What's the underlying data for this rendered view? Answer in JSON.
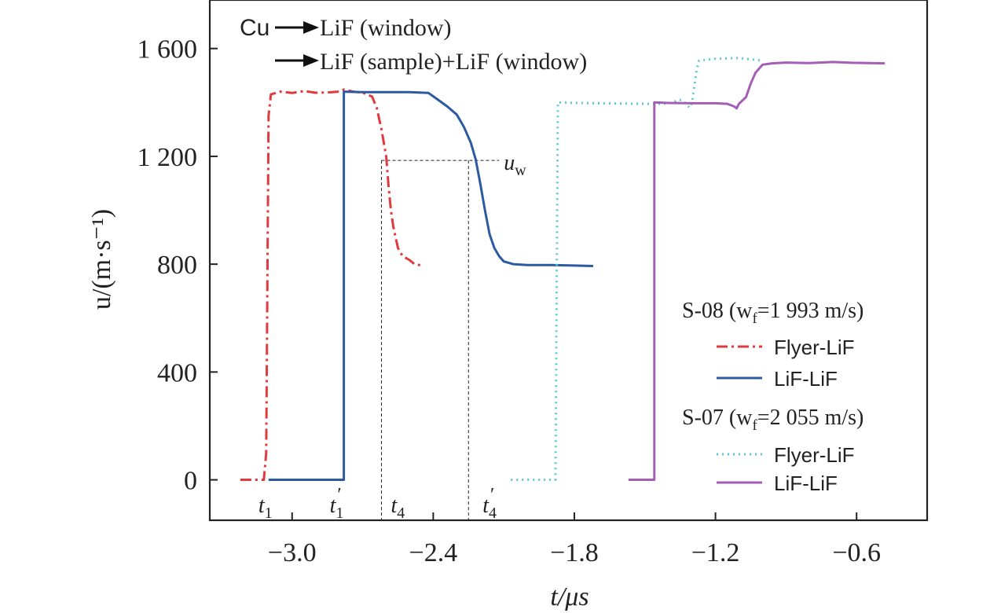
{
  "chart_data": {
    "type": "line",
    "xlabel": "t/μs",
    "ylabel": "u/(m·s⁻¹)",
    "xlim": [
      -3.35,
      -0.3
    ],
    "ylim": [
      -150,
      1780
    ],
    "xticks": [
      -3.0,
      -2.4,
      -1.8,
      -1.2,
      -0.6
    ],
    "xtick_labels": [
      "−3.0",
      "−2.4",
      "−1.8",
      "−1.2",
      "−0.6"
    ],
    "yticks": [
      0,
      400,
      800,
      1200,
      1600
    ],
    "ytick_labels": [
      "0",
      "400",
      "800",
      "1 200",
      "1 600"
    ],
    "grid": false,
    "annotations": {
      "schema_line1_a": "Cu",
      "schema_line1_b": "LiF (window)",
      "schema_line2": "LiF (sample)+LiF (window)",
      "u_w": "u",
      "u_w_sub": "w",
      "t1": "t",
      "t1_sub": "1",
      "t1p": "t",
      "t1p_sub": "1",
      "t4": "t",
      "t4_sub": "4",
      "t4p": "t",
      "t4p_sub": "4"
    },
    "legend": {
      "placement": "right",
      "groups": [
        {
          "label": "S-08 (w",
          "label_sub": "f",
          "label_tail": "=1 993 m/s)",
          "entries": [
            "Flyer-LiF",
            "LiF-LiF"
          ]
        },
        {
          "label": "S-07 (w",
          "label_sub": "f",
          "label_tail": "=2 055 m/s)",
          "entries": [
            "Flyer-LiF",
            "LiF-LiF"
          ]
        }
      ]
    },
    "colors": {
      "s08_flyer": "#e0393e",
      "s08_lif": "#2c5aa0",
      "s07_flyer": "#5bc8d8",
      "s07_lif": "#a45fb5"
    },
    "series": [
      {
        "name": "S-08 Flyer-LiF",
        "style": "dashdot",
        "color": "#e0393e",
        "points": [
          [
            -3.22,
            0
          ],
          [
            -3.12,
            0
          ],
          [
            -3.11,
            100
          ],
          [
            -3.1,
            1350
          ],
          [
            -3.09,
            1430
          ],
          [
            -3.05,
            1440
          ],
          [
            -3.0,
            1435
          ],
          [
            -2.95,
            1442
          ],
          [
            -2.9,
            1436
          ],
          [
            -2.85,
            1437
          ],
          [
            -2.8,
            1440
          ],
          [
            -2.78,
            1448
          ],
          [
            -2.74,
            1440
          ],
          [
            -2.7,
            1436
          ],
          [
            -2.66,
            1422
          ],
          [
            -2.64,
            1380
          ],
          [
            -2.62,
            1300
          ],
          [
            -2.6,
            1200
          ],
          [
            -2.59,
            1090
          ],
          [
            -2.58,
            1000
          ],
          [
            -2.57,
            940
          ],
          [
            -2.56,
            900
          ],
          [
            -2.55,
            860
          ],
          [
            -2.53,
            830
          ],
          [
            -2.5,
            815
          ],
          [
            -2.48,
            800
          ],
          [
            -2.46,
            797
          ],
          [
            -2.45,
            795
          ]
        ]
      },
      {
        "name": "S-08 LiF-LiF",
        "style": "solid",
        "color": "#2c5aa0",
        "points": [
          [
            -3.1,
            0
          ],
          [
            -2.78,
            0
          ],
          [
            -2.78,
            1440
          ],
          [
            -2.7,
            1438
          ],
          [
            -2.6,
            1438
          ],
          [
            -2.5,
            1438
          ],
          [
            -2.42,
            1435
          ],
          [
            -2.38,
            1410
          ],
          [
            -2.34,
            1385
          ],
          [
            -2.3,
            1355
          ],
          [
            -2.27,
            1310
          ],
          [
            -2.24,
            1250
          ],
          [
            -2.22,
            1190
          ],
          [
            -2.2,
            1100
          ],
          [
            -2.18,
            1000
          ],
          [
            -2.16,
            910
          ],
          [
            -2.14,
            860
          ],
          [
            -2.12,
            830
          ],
          [
            -2.1,
            810
          ],
          [
            -2.06,
            800
          ],
          [
            -2.0,
            797
          ],
          [
            -1.9,
            797
          ],
          [
            -1.8,
            795
          ],
          [
            -1.72,
            793
          ]
        ]
      },
      {
        "name": "S-07 Flyer-LiF",
        "style": "dotted",
        "color": "#5bc8d8",
        "points": [
          [
            -2.07,
            0
          ],
          [
            -1.88,
            0
          ],
          [
            -1.88,
            10
          ],
          [
            -1.87,
            1400
          ],
          [
            -1.8,
            1398
          ],
          [
            -1.7,
            1397
          ],
          [
            -1.6,
            1396
          ],
          [
            -1.5,
            1395
          ],
          [
            -1.42,
            1395
          ],
          [
            -1.38,
            1400
          ],
          [
            -1.36,
            1410
          ],
          [
            -1.34,
            1408
          ],
          [
            -1.32,
            1390
          ],
          [
            -1.31,
            1380
          ],
          [
            -1.3,
            1400
          ],
          [
            -1.28,
            1520
          ],
          [
            -1.27,
            1555
          ],
          [
            -1.2,
            1562
          ],
          [
            -1.1,
            1565
          ],
          [
            -1.05,
            1560
          ],
          [
            -1.0,
            1555
          ]
        ]
      },
      {
        "name": "S-07 LiF-LiF",
        "style": "solid",
        "color": "#a45fb5",
        "points": [
          [
            -1.57,
            0
          ],
          [
            -1.46,
            0
          ],
          [
            -1.46,
            1400
          ],
          [
            -1.4,
            1398
          ],
          [
            -1.3,
            1397
          ],
          [
            -1.2,
            1397
          ],
          [
            -1.15,
            1395
          ],
          [
            -1.12,
            1385
          ],
          [
            -1.11,
            1378
          ],
          [
            -1.1,
            1395
          ],
          [
            -1.07,
            1420
          ],
          [
            -1.05,
            1470
          ],
          [
            -1.03,
            1510
          ],
          [
            -1.0,
            1540
          ],
          [
            -0.96,
            1545
          ],
          [
            -0.9,
            1548
          ],
          [
            -0.8,
            1546
          ],
          [
            -0.7,
            1550
          ],
          [
            -0.62,
            1547
          ],
          [
            -0.55,
            1546
          ],
          [
            -0.48,
            1545
          ]
        ]
      }
    ],
    "guides": {
      "t4_x": -2.62,
      "t4p_x": -2.25,
      "uw_y": 1185,
      "uw_x_start": -2.62,
      "uw_x_end": -2.12
    }
  }
}
